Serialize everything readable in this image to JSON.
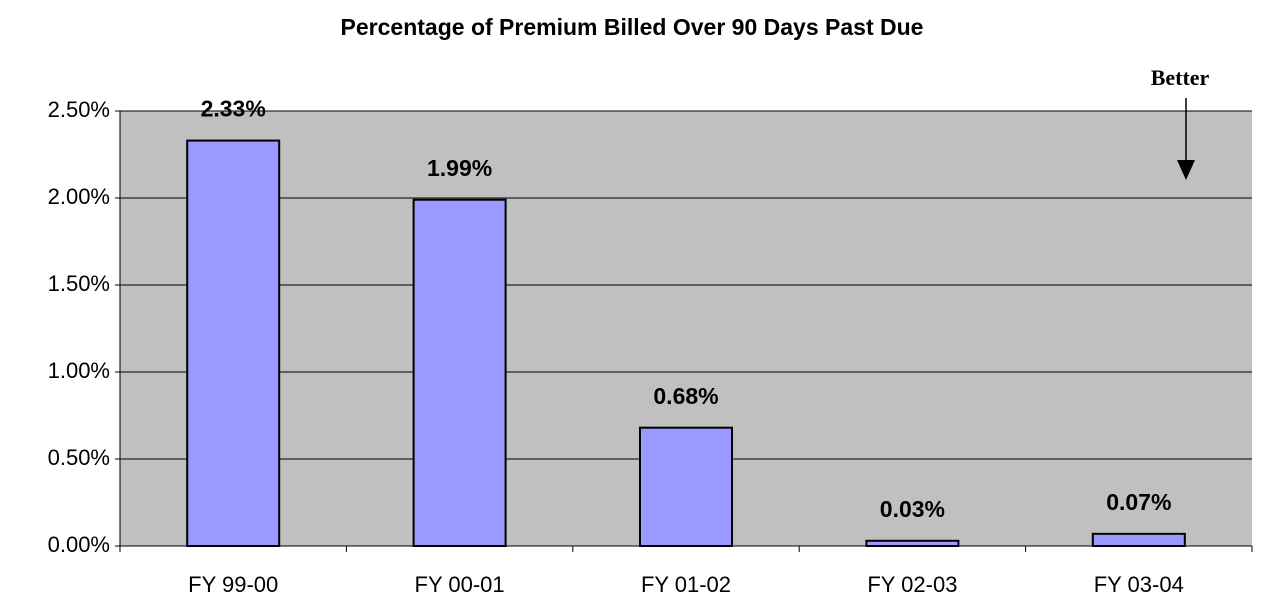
{
  "chart_data": {
    "type": "bar",
    "title": "Percentage of Premium Billed Over 90 Days Past Due",
    "annotation": "Better",
    "categories": [
      "FY 99-00",
      "FY 00-01",
      "FY 01-02",
      "FY 02-03",
      "FY 03-04"
    ],
    "values": [
      2.33,
      1.99,
      0.68,
      0.03,
      0.07
    ],
    "value_labels": [
      "2.33%",
      "1.99%",
      "0.68%",
      "0.03%",
      "0.07%"
    ],
    "color": "#9999ff",
    "ylim": [
      0,
      2.5
    ],
    "yticks": [
      {
        "value": 0,
        "label": "0.00%"
      },
      {
        "value": 0.5,
        "label": "0.50%"
      },
      {
        "value": 1,
        "label": "1.00%"
      },
      {
        "value": 1.5,
        "label": "1.50%"
      },
      {
        "value": 2,
        "label": "2.00%"
      },
      {
        "value": 2.5,
        "label": "2.50%"
      }
    ],
    "grid": true
  }
}
